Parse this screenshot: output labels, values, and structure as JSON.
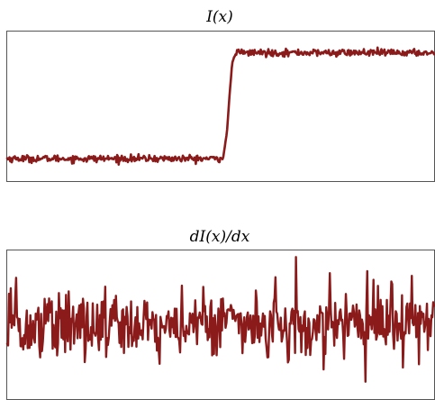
{
  "chart_data": [
    {
      "type": "line",
      "title": "I(x)",
      "xlabel": "",
      "ylabel": "",
      "grid": false,
      "legend": "none",
      "color": "#8b1a1a",
      "ylim": [
        -0.1,
        1.1
      ],
      "series": [
        {
          "x": [
            0.0,
            0.5,
            0.506,
            0.515,
            0.52,
            0.527,
            0.536,
            1.0
          ],
          "values": [
            0.08,
            0.08,
            0.09,
            0.3,
            0.55,
            0.85,
            0.93,
            0.93
          ]
        }
      ],
      "noise_amplitude": 0.025
    },
    {
      "type": "line",
      "title": "dI(x)/dx",
      "xlabel": "",
      "ylabel": "",
      "grid": false,
      "legend": "none",
      "color": "#8b1a1a",
      "ylim": [
        -1.0,
        1.0
      ],
      "series": [
        {
          "x": [
            0.0,
            0.5,
            0.52,
            0.55,
            1.0
          ],
          "values": [
            0.0,
            0.0,
            0.18,
            0.0,
            0.0
          ]
        }
      ],
      "noise_amplitude": 0.22
    }
  ]
}
